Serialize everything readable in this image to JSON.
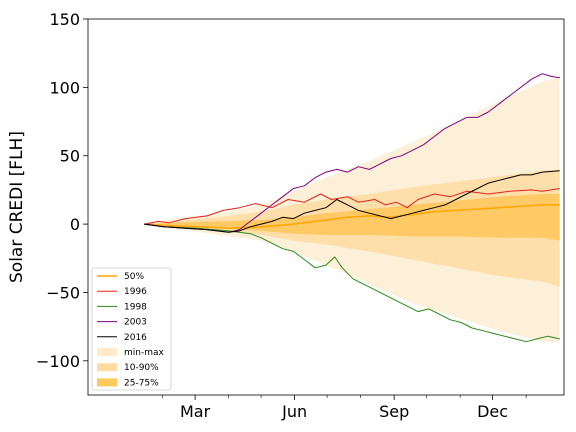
{
  "chart_data": {
    "type": "line",
    "ylabel": "Solar CREDI [FLH]",
    "xlabel": "",
    "title": "",
    "x_unit": "day-of-year",
    "xlim": [
      -40,
      400
    ],
    "ylim": [
      -125,
      150
    ],
    "yticks": [
      -100,
      -50,
      0,
      50,
      100,
      150
    ],
    "xticks": [
      {
        "label": "Mar",
        "day": 59
      },
      {
        "label": "Jun",
        "day": 151
      },
      {
        "label": "Sep",
        "day": 243
      },
      {
        "label": "Dec",
        "day": 334
      }
    ],
    "minor_xticks": [
      29,
      90,
      120,
      181,
      212,
      273,
      304,
      365
    ],
    "grid": false,
    "legend_position": "lower-left",
    "series": [
      {
        "name": "50%",
        "color": "#ffa500",
        "width": 1.5,
        "points": [
          [
            12,
            0
          ],
          [
            30,
            -1
          ],
          [
            60,
            -2
          ],
          [
            90,
            -3
          ],
          [
            120,
            -2
          ],
          [
            150,
            0
          ],
          [
            180,
            3
          ],
          [
            200,
            5
          ],
          [
            220,
            6
          ],
          [
            240,
            5
          ],
          [
            260,
            7
          ],
          [
            280,
            9
          ],
          [
            300,
            10
          ],
          [
            320,
            11
          ],
          [
            340,
            12
          ],
          [
            360,
            13
          ],
          [
            380,
            14
          ],
          [
            396,
            14
          ]
        ]
      },
      {
        "name": "1996",
        "color": "#e8201a",
        "width": 1,
        "points": [
          [
            12,
            0
          ],
          [
            25,
            2
          ],
          [
            35,
            1
          ],
          [
            50,
            4
          ],
          [
            70,
            6
          ],
          [
            85,
            10
          ],
          [
            100,
            12
          ],
          [
            115,
            15
          ],
          [
            130,
            12
          ],
          [
            145,
            18
          ],
          [
            160,
            16
          ],
          [
            175,
            22
          ],
          [
            185,
            18
          ],
          [
            200,
            20
          ],
          [
            210,
            16
          ],
          [
            225,
            18
          ],
          [
            235,
            14
          ],
          [
            245,
            16
          ],
          [
            255,
            12
          ],
          [
            265,
            18
          ],
          [
            280,
            22
          ],
          [
            295,
            20
          ],
          [
            310,
            24
          ],
          [
            330,
            22
          ],
          [
            350,
            24
          ],
          [
            370,
            25
          ],
          [
            380,
            24
          ],
          [
            396,
            26
          ]
        ]
      },
      {
        "name": "1998",
        "color": "#2a8a1a",
        "width": 1,
        "points": [
          [
            12,
            0
          ],
          [
            30,
            -2
          ],
          [
            60,
            -3
          ],
          [
            90,
            -5
          ],
          [
            110,
            -7
          ],
          [
            120,
            -10
          ],
          [
            130,
            -14
          ],
          [
            140,
            -18
          ],
          [
            150,
            -20
          ],
          [
            160,
            -26
          ],
          [
            170,
            -32
          ],
          [
            180,
            -30
          ],
          [
            188,
            -24
          ],
          [
            195,
            -32
          ],
          [
            205,
            -40
          ],
          [
            215,
            -44
          ],
          [
            225,
            -48
          ],
          [
            235,
            -52
          ],
          [
            245,
            -56
          ],
          [
            255,
            -60
          ],
          [
            265,
            -64
          ],
          [
            275,
            -62
          ],
          [
            285,
            -66
          ],
          [
            295,
            -70
          ],
          [
            305,
            -72
          ],
          [
            315,
            -76
          ],
          [
            325,
            -78
          ],
          [
            335,
            -80
          ],
          [
            345,
            -82
          ],
          [
            355,
            -84
          ],
          [
            365,
            -86
          ],
          [
            375,
            -84
          ],
          [
            385,
            -82
          ],
          [
            396,
            -84
          ]
        ]
      },
      {
        "name": "2003",
        "color": "#800080",
        "width": 1,
        "points": [
          [
            12,
            0
          ],
          [
            30,
            -2
          ],
          [
            50,
            -3
          ],
          [
            70,
            -4
          ],
          [
            90,
            -6
          ],
          [
            100,
            -4
          ],
          [
            110,
            2
          ],
          [
            120,
            8
          ],
          [
            130,
            14
          ],
          [
            140,
            20
          ],
          [
            150,
            26
          ],
          [
            160,
            28
          ],
          [
            170,
            34
          ],
          [
            180,
            38
          ],
          [
            190,
            40
          ],
          [
            200,
            38
          ],
          [
            210,
            42
          ],
          [
            220,
            40
          ],
          [
            230,
            44
          ],
          [
            240,
            48
          ],
          [
            250,
            50
          ],
          [
            260,
            54
          ],
          [
            270,
            58
          ],
          [
            280,
            64
          ],
          [
            290,
            70
          ],
          [
            300,
            74
          ],
          [
            310,
            78
          ],
          [
            320,
            78
          ],
          [
            330,
            82
          ],
          [
            340,
            88
          ],
          [
            350,
            94
          ],
          [
            360,
            100
          ],
          [
            370,
            106
          ],
          [
            380,
            110
          ],
          [
            388,
            108
          ],
          [
            396,
            107
          ]
        ]
      },
      {
        "name": "2016",
        "color": "#000000",
        "width": 1,
        "points": [
          [
            12,
            0
          ],
          [
            30,
            -2
          ],
          [
            50,
            -3
          ],
          [
            70,
            -4
          ],
          [
            90,
            -6
          ],
          [
            100,
            -5
          ],
          [
            110,
            -2
          ],
          [
            120,
            0
          ],
          [
            130,
            2
          ],
          [
            140,
            5
          ],
          [
            150,
            4
          ],
          [
            160,
            8
          ],
          [
            170,
            10
          ],
          [
            180,
            12
          ],
          [
            190,
            18
          ],
          [
            200,
            14
          ],
          [
            210,
            10
          ],
          [
            220,
            8
          ],
          [
            230,
            6
          ],
          [
            240,
            4
          ],
          [
            250,
            6
          ],
          [
            260,
            8
          ],
          [
            270,
            10
          ],
          [
            280,
            12
          ],
          [
            290,
            14
          ],
          [
            300,
            18
          ],
          [
            310,
            22
          ],
          [
            320,
            26
          ],
          [
            330,
            30
          ],
          [
            340,
            32
          ],
          [
            350,
            34
          ],
          [
            360,
            36
          ],
          [
            370,
            36
          ],
          [
            380,
            38
          ],
          [
            396,
            39
          ]
        ]
      }
    ],
    "bands": [
      {
        "name": "min-max",
        "color": "#fce4b8",
        "opacity": 0.55,
        "x": [
          12,
          40,
          80,
          120,
          150,
          180,
          220,
          260,
          300,
          340,
          380,
          396
        ],
        "lower": [
          0,
          -3,
          -8,
          -12,
          -20,
          -30,
          -44,
          -58,
          -68,
          -78,
          -86,
          -86
        ],
        "upper": [
          0,
          4,
          8,
          14,
          24,
          34,
          46,
          60,
          74,
          90,
          104,
          108
        ]
      },
      {
        "name": "10-90%",
        "color": "#ffd28a",
        "opacity": 0.6,
        "x": [
          12,
          40,
          80,
          120,
          150,
          180,
          220,
          260,
          300,
          340,
          380,
          396
        ],
        "lower": [
          0,
          -2,
          -5,
          -8,
          -12,
          -15,
          -20,
          -26,
          -32,
          -38,
          -42,
          -46
        ],
        "upper": [
          0,
          2,
          5,
          9,
          14,
          18,
          22,
          27,
          31,
          35,
          39,
          40
        ]
      },
      {
        "name": "25-75%",
        "color": "#ffbf40",
        "opacity": 0.65,
        "x": [
          12,
          40,
          80,
          120,
          150,
          180,
          220,
          260,
          300,
          340,
          380,
          396
        ],
        "lower": [
          0,
          -1,
          -3,
          -5,
          -7,
          -8,
          -8,
          -9,
          -9,
          -10,
          -10,
          -12
        ],
        "upper": [
          0,
          1,
          2,
          3,
          5,
          8,
          11,
          14,
          17,
          20,
          22,
          22
        ]
      }
    ]
  }
}
